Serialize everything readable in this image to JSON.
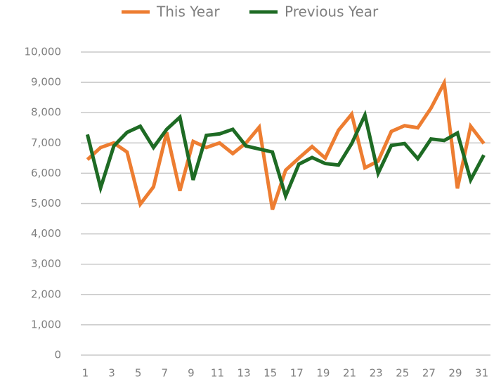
{
  "chart_data": {
    "type": "line",
    "categories": [
      "1",
      null,
      "3",
      null,
      "5",
      null,
      "7",
      null,
      "9",
      null,
      "11",
      null,
      "13",
      null,
      "15",
      null,
      "17",
      null,
      "19",
      null,
      "21",
      null,
      "23",
      null,
      "25",
      null,
      "27",
      null,
      "29",
      null,
      "31"
    ],
    "series": [
      {
        "name": "This Year",
        "color": "#ed7d31",
        "values": [
          6450,
          6850,
          7000,
          6700,
          4980,
          5550,
          7350,
          5420,
          7050,
          6850,
          7000,
          6650,
          7000,
          7520,
          4800,
          6100,
          6500,
          6880,
          6500,
          7420,
          7950,
          6180,
          6400,
          7380,
          7570,
          7500,
          8150,
          8980,
          5500,
          7550,
          6980
        ]
      },
      {
        "name": "Previous Year",
        "color": "#1e6b24",
        "values": [
          7280,
          5520,
          6900,
          7350,
          7550,
          6850,
          7450,
          7850,
          5780,
          7250,
          7300,
          7450,
          6900,
          6800,
          6700,
          5250,
          6300,
          6520,
          6320,
          6270,
          6980,
          7920,
          6000,
          6920,
          6980,
          6480,
          7130,
          7080,
          7330,
          5780,
          6600
        ]
      }
    ],
    "ylim": [
      0,
      10000
    ],
    "yticks": [
      0,
      {
        "value": 1000,
        "label": "1,000"
      },
      {
        "value": 2000,
        "label": "2,000"
      },
      {
        "value": 3000,
        "label": "3,000"
      },
      {
        "value": 4000,
        "label": "4,000"
      },
      {
        "value": 5000,
        "label": "5,000"
      },
      {
        "value": 6000,
        "label": "6,000"
      },
      {
        "value": 7000,
        "label": "7,000"
      },
      {
        "value": 8000,
        "label": "8,000"
      },
      {
        "value": 9000,
        "label": "9,000"
      },
      {
        "value": 10000,
        "label": "10,000"
      }
    ],
    "grid": true,
    "legend": "top"
  }
}
